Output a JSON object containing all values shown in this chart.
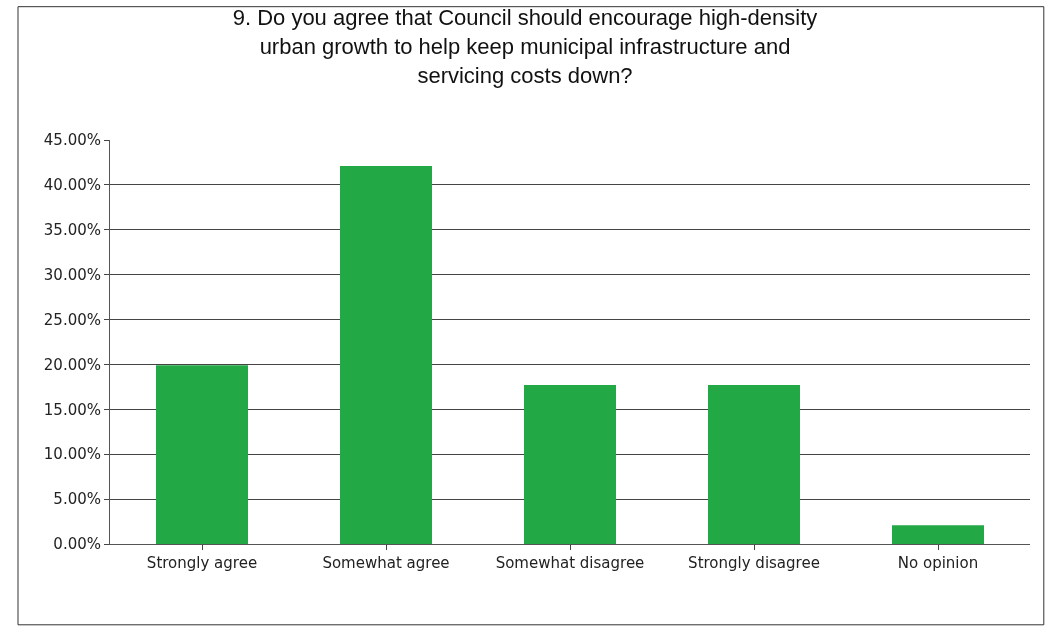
{
  "chart_data": {
    "type": "bar",
    "title": "9. Do you agree that Council should encourage high-density urban growth to help keep municipal infrastructure and servicing costs down?",
    "categories": [
      "Strongly agree",
      "Somewhat agree",
      "Somewhat disagree",
      "Strongly disagree",
      "No opinion"
    ],
    "values": [
      19.9,
      42.1,
      17.7,
      17.7,
      2.1
    ],
    "color": "#22a845",
    "ylim": [
      0,
      45
    ],
    "yticks": [
      {
        "value": 0,
        "label": "0.00%"
      },
      {
        "value": 5,
        "label": "5.00%"
      },
      {
        "value": 10,
        "label": "10.00%"
      },
      {
        "value": 15,
        "label": "15.00%"
      },
      {
        "value": 20,
        "label": "20.00%"
      },
      {
        "value": 25,
        "label": "25.00%"
      },
      {
        "value": 30,
        "label": "30.00%"
      },
      {
        "value": 35,
        "label": "35.00%"
      },
      {
        "value": 40,
        "label": "40.00%"
      },
      {
        "value": 45,
        "label": "45.00%"
      }
    ],
    "grid": "y"
  }
}
